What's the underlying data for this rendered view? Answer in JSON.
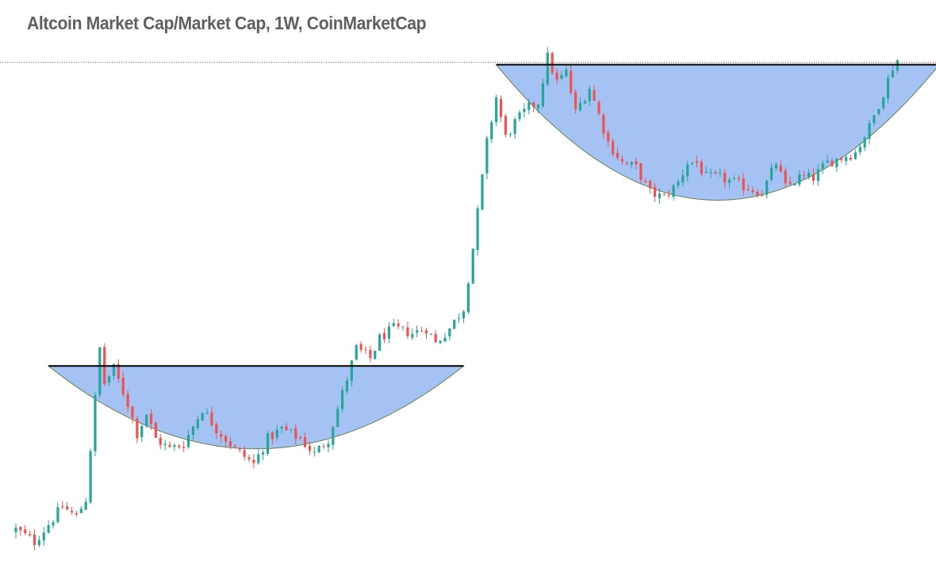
{
  "chart_data": {
    "type": "candlestick",
    "title": "Altcoin Market Cap/Market Cap, 1W, CoinMarketCap",
    "interval": "1W",
    "source": "CoinMarketCap",
    "xlabel": "",
    "ylabel": "",
    "grid": false,
    "legend": "none",
    "y_range": [
      0,
      1
    ],
    "colors": {
      "up": "#26a69a",
      "down": "#ef5350",
      "bowl_fill": "#a4c2f4",
      "bowl_stroke": "#6d8a5c",
      "neckline": "#000000",
      "price_line": "#c0392b",
      "title": "#606060"
    },
    "path": [
      [
        0,
        0.06
      ],
      [
        4,
        0.035
      ],
      [
        7,
        0.07
      ],
      [
        10,
        0.105
      ],
      [
        13,
        0.085
      ],
      [
        15,
        0.12
      ],
      [
        18,
        0.42
      ],
      [
        19,
        0.35
      ],
      [
        21,
        0.38
      ],
      [
        24,
        0.31
      ],
      [
        26,
        0.25
      ],
      [
        28,
        0.29
      ],
      [
        30,
        0.24
      ],
      [
        33,
        0.22
      ],
      [
        36,
        0.23
      ],
      [
        40,
        0.3
      ],
      [
        43,
        0.26
      ],
      [
        47,
        0.22
      ],
      [
        51,
        0.19
      ],
      [
        54,
        0.24
      ],
      [
        57,
        0.26
      ],
      [
        61,
        0.24
      ],
      [
        64,
        0.21
      ],
      [
        67,
        0.24
      ],
      [
        70,
        0.33
      ],
      [
        73,
        0.42
      ],
      [
        76,
        0.4
      ],
      [
        78,
        0.44
      ],
      [
        81,
        0.46
      ],
      [
        85,
        0.45
      ],
      [
        88,
        0.46
      ],
      [
        90,
        0.43
      ],
      [
        93,
        0.46
      ],
      [
        96,
        0.5
      ],
      [
        98,
        0.62
      ],
      [
        101,
        0.83
      ],
      [
        103,
        0.92
      ],
      [
        105,
        0.84
      ],
      [
        107,
        0.87
      ],
      [
        110,
        0.9
      ],
      [
        112,
        0.91
      ],
      [
        114,
        1.0
      ],
      [
        116,
        0.95
      ],
      [
        118,
        0.97
      ],
      [
        120,
        0.89
      ],
      [
        123,
        0.94
      ],
      [
        127,
        0.83
      ],
      [
        130,
        0.79
      ],
      [
        133,
        0.78
      ],
      [
        136,
        0.73
      ],
      [
        139,
        0.72
      ],
      [
        142,
        0.75
      ],
      [
        144,
        0.79
      ],
      [
        146,
        0.79
      ],
      [
        148,
        0.76
      ],
      [
        151,
        0.76
      ],
      [
        154,
        0.75
      ],
      [
        157,
        0.74
      ],
      [
        160,
        0.73
      ],
      [
        163,
        0.79
      ],
      [
        165,
        0.74
      ],
      [
        168,
        0.76
      ],
      [
        171,
        0.76
      ],
      [
        174,
        0.79
      ],
      [
        177,
        0.8
      ],
      [
        180,
        0.81
      ],
      [
        183,
        0.86
      ],
      [
        186,
        0.93
      ],
      [
        188,
        0.98
      ],
      [
        189,
        0.995
      ]
    ],
    "cup_handle_patterns": [
      {
        "x_start": 7,
        "x_end": 96,
        "rim": 0.385,
        "bottom": 0.22
      },
      {
        "x_start": 103,
        "x_end": 198,
        "rim": 0.985,
        "bottom": 0.715
      }
    ],
    "reference_line": 0.99
  }
}
